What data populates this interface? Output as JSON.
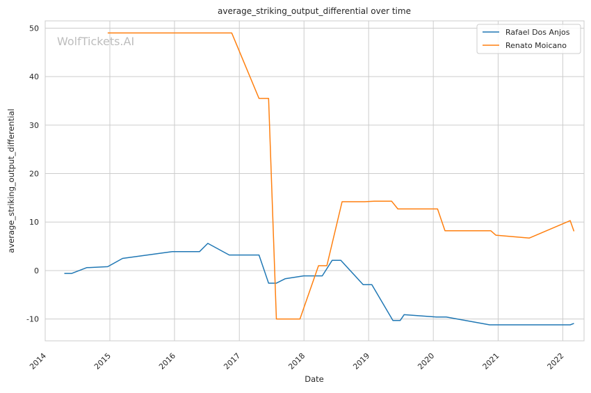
{
  "chart_data": {
    "type": "line",
    "title": "average_striking_output_differential over time",
    "xlabel": "Date",
    "ylabel": "average_striking_output_differential",
    "watermark": "WolfTickets.AI",
    "x_ticks": [
      "2014",
      "2015",
      "2016",
      "2017",
      "2018",
      "2019",
      "2020",
      "2021",
      "2022"
    ],
    "y_ticks": [
      -10,
      0,
      10,
      20,
      30,
      40,
      50
    ],
    "xlim": [
      "2014-01-01",
      "2022-05-01"
    ],
    "ylim": [
      -14.5,
      51.5
    ],
    "grid": true,
    "legend_position": "top-right",
    "colors": {
      "Rafael Dos Anjos": "#1f77b4",
      "Renato Moicano": "#ff7f0e"
    },
    "series": [
      {
        "name": "Rafael Dos Anjos",
        "color": "#1f77b4",
        "points": [
          {
            "x": "2014-04-19",
            "y": -0.6
          },
          {
            "x": "2014-05-31",
            "y": -0.6
          },
          {
            "x": "2014-08-23",
            "y": 0.6
          },
          {
            "x": "2014-12-20",
            "y": 0.8
          },
          {
            "x": "2015-03-14",
            "y": 2.5
          },
          {
            "x": "2015-12-19",
            "y": 3.9
          },
          {
            "x": "2016-05-21",
            "y": 3.9
          },
          {
            "x": "2016-07-07",
            "y": 5.6
          },
          {
            "x": "2016-11-05",
            "y": 3.2
          },
          {
            "x": "2017-04-22",
            "y": 3.2
          },
          {
            "x": "2017-06-15",
            "y": -2.6
          },
          {
            "x": "2017-07-29",
            "y": -2.6
          },
          {
            "x": "2017-09-16",
            "y": -1.7
          },
          {
            "x": "2017-12-30",
            "y": -1.1
          },
          {
            "x": "2018-04-14",
            "y": -1.1
          },
          {
            "x": "2018-06-09",
            "y": 2.1
          },
          {
            "x": "2018-07-28",
            "y": 2.1
          },
          {
            "x": "2018-12-01",
            "y": -2.9
          },
          {
            "x": "2019-01-19",
            "y": -2.9
          },
          {
            "x": "2019-05-18",
            "y": -10.3
          },
          {
            "x": "2019-06-28",
            "y": -10.3
          },
          {
            "x": "2019-07-20",
            "y": -9.1
          },
          {
            "x": "2020-01-18",
            "y": -9.6
          },
          {
            "x": "2020-03-14",
            "y": -9.6
          },
          {
            "x": "2020-11-14",
            "y": -11.2
          },
          {
            "x": "2022-02-12",
            "y": -11.2
          },
          {
            "x": "2022-03-05",
            "y": -10.9
          }
        ]
      },
      {
        "name": "Renato Moicano",
        "color": "#ff7f0e",
        "points": [
          {
            "x": "2014-12-20",
            "y": 49.0
          },
          {
            "x": "2016-11-19",
            "y": 49.0
          },
          {
            "x": "2017-04-22",
            "y": 35.5
          },
          {
            "x": "2017-06-15",
            "y": 35.5
          },
          {
            "x": "2017-07-29",
            "y": -10.0
          },
          {
            "x": "2017-12-09",
            "y": -10.0
          },
          {
            "x": "2018-03-24",
            "y": 1.0
          },
          {
            "x": "2018-05-10",
            "y": 1.0
          },
          {
            "x": "2018-08-04",
            "y": 14.2
          },
          {
            "x": "2018-12-08",
            "y": 14.2
          },
          {
            "x": "2019-02-02",
            "y": 14.3
          },
          {
            "x": "2019-05-11",
            "y": 14.3
          },
          {
            "x": "2019-06-15",
            "y": 12.7
          },
          {
            "x": "2020-01-25",
            "y": 12.7
          },
          {
            "x": "2020-03-07",
            "y": 8.2
          },
          {
            "x": "2020-11-21",
            "y": 8.2
          },
          {
            "x": "2020-12-19",
            "y": 7.3
          },
          {
            "x": "2021-06-26",
            "y": 6.7
          },
          {
            "x": "2022-02-12",
            "y": 10.3
          },
          {
            "x": "2022-03-05",
            "y": 8.1
          }
        ]
      }
    ]
  }
}
